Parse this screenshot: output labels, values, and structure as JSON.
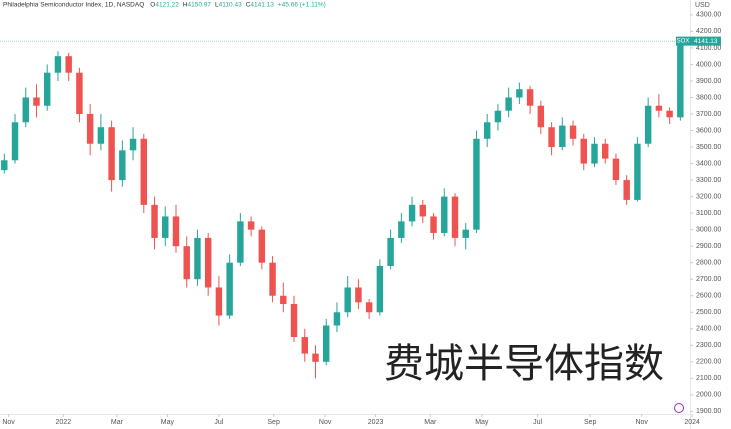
{
  "chart_data": {
    "type": "candlestick",
    "header": {
      "title": "Philadelphia Semiconductor Index, 1D, NASDAQ",
      "ohlc": [
        {
          "label": "O",
          "value": "4121.22"
        },
        {
          "label": "H",
          "value": "4150.97"
        },
        {
          "label": "L",
          "value": "4110.43"
        },
        {
          "label": "C",
          "value": "4141.13"
        }
      ],
      "change": "+45.66 (+1.11%)"
    },
    "currency": "USD",
    "symbol": "SOX",
    "watermark": "费城半导体指数",
    "up_color": "#26a69a",
    "down_color": "#ef5350",
    "candles": [
      [
        3360,
        3460,
        3340,
        3420
      ],
      [
        3420,
        3700,
        3400,
        3650
      ],
      [
        3650,
        3860,
        3620,
        3800
      ],
      [
        3800,
        3880,
        3680,
        3750
      ],
      [
        3750,
        4000,
        3720,
        3950
      ],
      [
        3950,
        4080,
        3900,
        4050
      ],
      [
        4050,
        4070,
        3900,
        3950
      ],
      [
        3950,
        3980,
        3650,
        3700
      ],
      [
        3700,
        3760,
        3450,
        3520
      ],
      [
        3520,
        3700,
        3480,
        3620
      ],
      [
        3620,
        3660,
        3230,
        3300
      ],
      [
        3300,
        3540,
        3260,
        3480
      ],
      [
        3480,
        3620,
        3420,
        3550
      ],
      [
        3550,
        3580,
        3100,
        3150
      ],
      [
        3150,
        3200,
        2880,
        2950
      ],
      [
        2950,
        3140,
        2900,
        3080
      ],
      [
        3080,
        3150,
        2860,
        2900
      ],
      [
        2900,
        2960,
        2650,
        2700
      ],
      [
        2700,
        3000,
        2660,
        2950
      ],
      [
        2950,
        2980,
        2600,
        2650
      ],
      [
        2650,
        2720,
        2420,
        2480
      ],
      [
        2480,
        2850,
        2460,
        2800
      ],
      [
        2800,
        3100,
        2780,
        3050
      ],
      [
        3050,
        3080,
        2960,
        3000
      ],
      [
        3000,
        3020,
        2760,
        2800
      ],
      [
        2800,
        2840,
        2560,
        2600
      ],
      [
        2600,
        2680,
        2500,
        2550
      ],
      [
        2550,
        2600,
        2320,
        2350
      ],
      [
        2350,
        2400,
        2200,
        2250
      ],
      [
        2250,
        2300,
        2100,
        2200
      ],
      [
        2200,
        2460,
        2180,
        2420
      ],
      [
        2420,
        2560,
        2380,
        2500
      ],
      [
        2500,
        2720,
        2470,
        2650
      ],
      [
        2650,
        2700,
        2520,
        2560
      ],
      [
        2560,
        2580,
        2460,
        2500
      ],
      [
        2500,
        2820,
        2480,
        2780
      ],
      [
        2780,
        3000,
        2760,
        2950
      ],
      [
        2950,
        3100,
        2920,
        3050
      ],
      [
        3050,
        3200,
        3020,
        3150
      ],
      [
        3150,
        3180,
        3040,
        3080
      ],
      [
        3080,
        3100,
        2940,
        2980
      ],
      [
        2980,
        3250,
        2960,
        3200
      ],
      [
        3200,
        3220,
        2900,
        2950
      ],
      [
        2950,
        3040,
        2880,
        3000
      ],
      [
        3000,
        3600,
        2980,
        3550
      ],
      [
        3550,
        3700,
        3500,
        3650
      ],
      [
        3650,
        3760,
        3600,
        3720
      ],
      [
        3720,
        3860,
        3680,
        3800
      ],
      [
        3800,
        3890,
        3760,
        3850
      ],
      [
        3850,
        3870,
        3700,
        3750
      ],
      [
        3750,
        3780,
        3580,
        3620
      ],
      [
        3620,
        3650,
        3450,
        3500
      ],
      [
        3500,
        3680,
        3480,
        3630
      ],
      [
        3630,
        3660,
        3510,
        3550
      ],
      [
        3550,
        3580,
        3360,
        3400
      ],
      [
        3400,
        3560,
        3380,
        3520
      ],
      [
        3520,
        3550,
        3400,
        3430
      ],
      [
        3430,
        3460,
        3270,
        3300
      ],
      [
        3300,
        3330,
        3150,
        3180
      ],
      [
        3180,
        3560,
        3170,
        3520
      ],
      [
        3520,
        3800,
        3500,
        3750
      ],
      [
        3750,
        3820,
        3680,
        3720
      ],
      [
        3720,
        3740,
        3640,
        3680
      ],
      [
        3680,
        4150.97,
        3660,
        4141.13
      ]
    ],
    "xlim": [
      -0.4,
      63.9
    ],
    "xticks": [
      {
        "value": 0.4,
        "label": "Nov"
      },
      {
        "value": 5.5,
        "label": "2022"
      },
      {
        "value": 10.5,
        "label": "Mar"
      },
      {
        "value": 15.2,
        "label": "May"
      },
      {
        "value": 20,
        "label": "Jul"
      },
      {
        "value": 25.1,
        "label": "Sep"
      },
      {
        "value": 29.9,
        "label": "Nov"
      },
      {
        "value": 34.6,
        "label": "2023"
      },
      {
        "value": 39.7,
        "label": "Mar"
      },
      {
        "value": 44.5,
        "label": "May"
      },
      {
        "value": 49.7,
        "label": "Jul"
      },
      {
        "value": 54.6,
        "label": "Sep"
      },
      {
        "value": 59.4,
        "label": "Nov"
      },
      {
        "value": 64.1,
        "label": "2024"
      }
    ],
    "ylim": [
      1860,
      4390
    ],
    "yticks": [
      {
        "value": 1900,
        "label": "1900.00"
      },
      {
        "value": 2000,
        "label": "2000.00"
      },
      {
        "value": 2100,
        "label": "2100.00"
      },
      {
        "value": 2200,
        "label": "2200.00"
      },
      {
        "value": 2300,
        "label": "2300.00"
      },
      {
        "value": 2400,
        "label": "2400.00"
      },
      {
        "value": 2500,
        "label": "2500.00"
      },
      {
        "value": 2600,
        "label": "2600.00"
      },
      {
        "value": 2700,
        "label": "2700.00"
      },
      {
        "value": 2800,
        "label": "2800.00"
      },
      {
        "value": 2900,
        "label": "2900.00"
      },
      {
        "value": 3000,
        "label": "3000.00"
      },
      {
        "value": 3100,
        "label": "3100.00"
      },
      {
        "value": 3200,
        "label": "3200.00"
      },
      {
        "value": 3300,
        "label": "3300.00"
      },
      {
        "value": 3400,
        "label": "3400.00"
      },
      {
        "value": 3500,
        "label": "3500.00"
      },
      {
        "value": 3600,
        "label": "3600.00"
      },
      {
        "value": 3700,
        "label": "3700.00"
      },
      {
        "value": 3800,
        "label": "3800.00"
      },
      {
        "value": 3900,
        "label": "3900.00"
      },
      {
        "value": 4000,
        "label": "4000.00"
      },
      {
        "value": 4100,
        "label": "4100.00"
      },
      {
        "value": 4200,
        "label": "4200.00"
      },
      {
        "value": 4300,
        "label": "4300.00"
      }
    ]
  }
}
